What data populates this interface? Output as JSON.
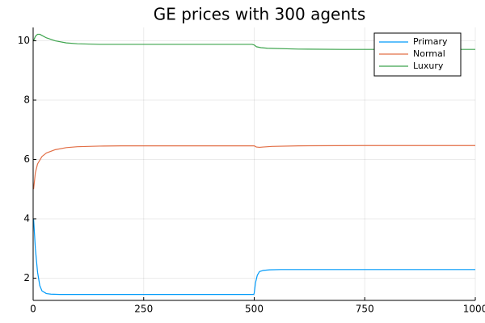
{
  "chart_data": {
    "type": "line",
    "title": "GE prices with 300 agents",
    "xlabel": "",
    "ylabel": "",
    "xlim": [
      0,
      1000
    ],
    "ylim": [
      1.25,
      10.45
    ],
    "xticks": [
      0,
      250,
      500,
      750,
      1000
    ],
    "yticks": [
      2,
      4,
      6,
      8,
      10
    ],
    "xtick_labels": [
      "0",
      "250",
      "500",
      "750",
      "1000"
    ],
    "ytick_labels": [
      "2",
      "4",
      "6",
      "8",
      "10"
    ],
    "grid": true,
    "legend": {
      "position": "top-right",
      "frame": true
    },
    "series": [
      {
        "name": "Primary",
        "color": "#009af9",
        "points": [
          [
            1,
            4.0
          ],
          [
            5,
            3.0
          ],
          [
            10,
            2.2
          ],
          [
            15,
            1.75
          ],
          [
            20,
            1.57
          ],
          [
            30,
            1.48
          ],
          [
            40,
            1.46
          ],
          [
            60,
            1.45
          ],
          [
            100,
            1.45
          ],
          [
            200,
            1.45
          ],
          [
            300,
            1.45
          ],
          [
            400,
            1.45
          ],
          [
            499,
            1.45
          ],
          [
            500,
            1.5
          ],
          [
            503,
            1.85
          ],
          [
            507,
            2.1
          ],
          [
            512,
            2.22
          ],
          [
            520,
            2.26
          ],
          [
            535,
            2.28
          ],
          [
            560,
            2.29
          ],
          [
            650,
            2.29
          ],
          [
            800,
            2.29
          ],
          [
            1000,
            2.29
          ]
        ]
      },
      {
        "name": "Normal",
        "color": "#e26f46",
        "points": [
          [
            1,
            5.0
          ],
          [
            5,
            5.55
          ],
          [
            10,
            5.85
          ],
          [
            20,
            6.1
          ],
          [
            30,
            6.22
          ],
          [
            50,
            6.33
          ],
          [
            75,
            6.4
          ],
          [
            100,
            6.43
          ],
          [
            150,
            6.45
          ],
          [
            200,
            6.46
          ],
          [
            300,
            6.46
          ],
          [
            400,
            6.46
          ],
          [
            500,
            6.46
          ],
          [
            505,
            6.42
          ],
          [
            512,
            6.41
          ],
          [
            520,
            6.42
          ],
          [
            540,
            6.44
          ],
          [
            600,
            6.46
          ],
          [
            750,
            6.47
          ],
          [
            1000,
            6.47
          ]
        ]
      },
      {
        "name": "Luxury",
        "color": "#3da44d",
        "points": [
          [
            1,
            10.0
          ],
          [
            5,
            10.15
          ],
          [
            10,
            10.22
          ],
          [
            15,
            10.22
          ],
          [
            20,
            10.18
          ],
          [
            30,
            10.1
          ],
          [
            50,
            10.0
          ],
          [
            75,
            9.93
          ],
          [
            100,
            9.9
          ],
          [
            150,
            9.88
          ],
          [
            200,
            9.88
          ],
          [
            300,
            9.88
          ],
          [
            400,
            9.88
          ],
          [
            495,
            9.88
          ],
          [
            500,
            9.86
          ],
          [
            505,
            9.8
          ],
          [
            515,
            9.77
          ],
          [
            530,
            9.75
          ],
          [
            600,
            9.72
          ],
          [
            700,
            9.71
          ],
          [
            800,
            9.71
          ],
          [
            1000,
            9.71
          ]
        ]
      }
    ]
  }
}
